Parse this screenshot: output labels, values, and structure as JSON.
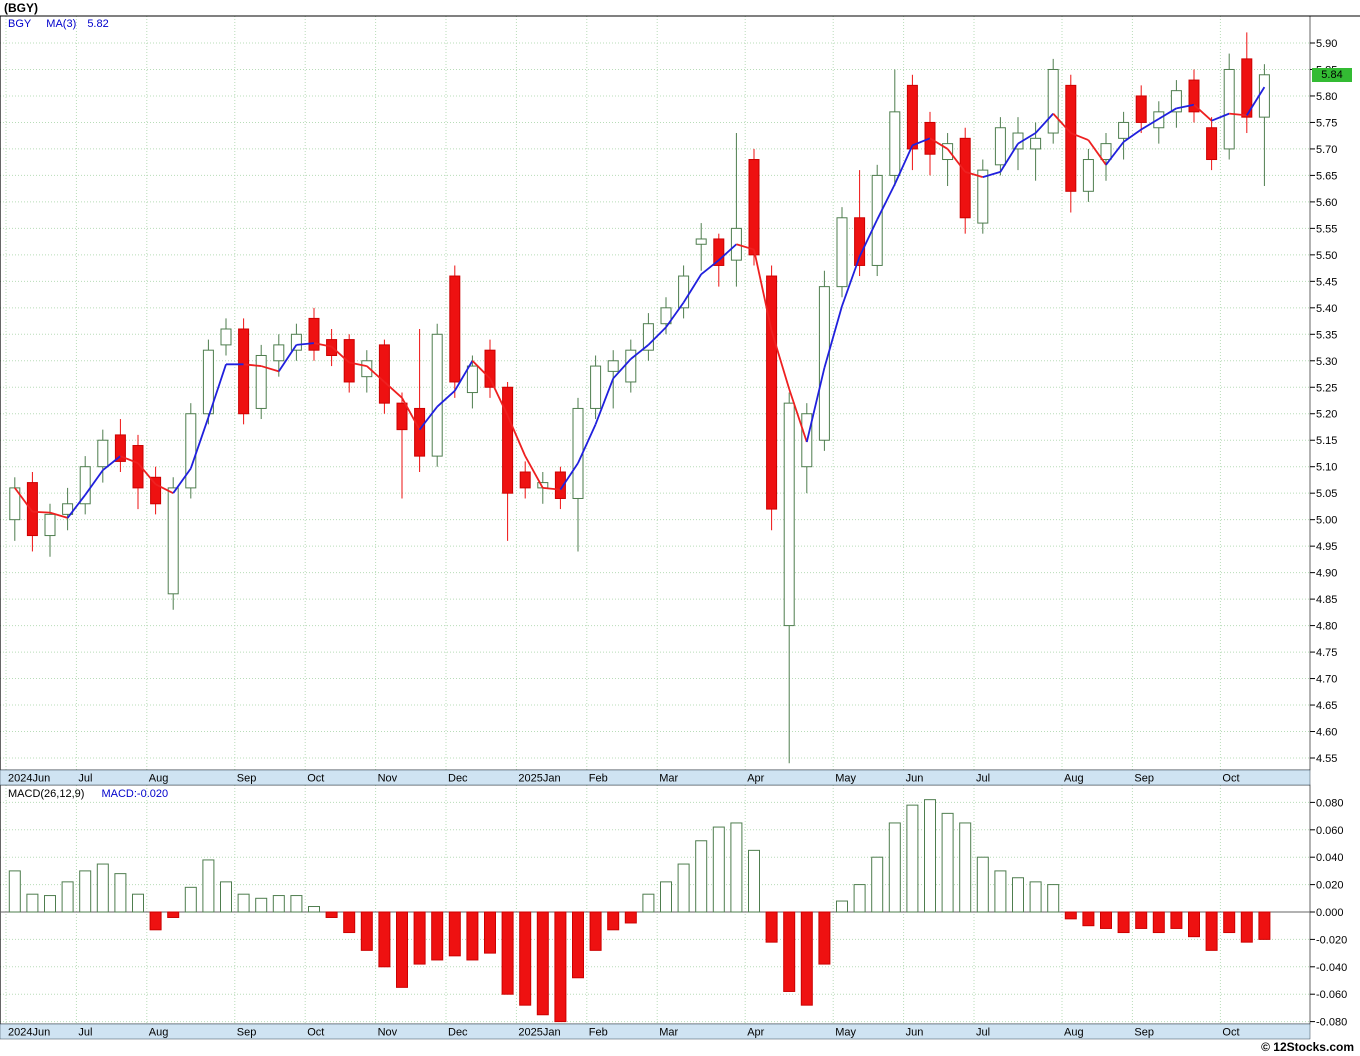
{
  "header": {
    "title": "(BGY)"
  },
  "main_panel": {
    "legend": {
      "symbol": "BGY",
      "ma_label": "MA(3)",
      "ma_value": "5.82"
    },
    "last_price": "5.84"
  },
  "macd_panel": {
    "legend": "MACD(26,12,9)",
    "value": "MACD:-0.020"
  },
  "footer": {
    "copyright": "© 12Stocks.com"
  },
  "colors": {
    "up": "#4e7d4e",
    "down": "#ee1111",
    "downEdge": "#cc0000",
    "maUp": "#2020dd",
    "maDown": "#ee2020",
    "grid": "#b8dcb8",
    "band": "#cfe3f2",
    "badge_bg": "#33bb33",
    "legend_blue": "#0000cc"
  },
  "chart_data": {
    "type": "candlestick_with_macd",
    "symbol": "BGY",
    "title": "(BGY)",
    "legend_position": "top-left",
    "grid": true,
    "main": {
      "ylim": [
        4.53,
        5.95
      ],
      "y_ticks": [
        "5.90",
        "5.85",
        "5.80",
        "5.75",
        "5.70",
        "5.65",
        "5.60",
        "5.55",
        "5.50",
        "5.45",
        "5.40",
        "5.35",
        "5.30",
        "5.25",
        "5.20",
        "5.15",
        "5.10",
        "5.05",
        "5.00",
        "4.95",
        "4.90",
        "4.85",
        "4.80",
        "4.75",
        "4.70",
        "4.65",
        "4.60",
        "4.55"
      ],
      "ma_period": 3,
      "last_ma": 5.82,
      "last_close": 5.84,
      "candles_ohlc": [
        [
          5.0,
          5.08,
          4.96,
          5.06
        ],
        [
          5.07,
          5.09,
          4.94,
          4.97
        ],
        [
          4.97,
          5.03,
          4.93,
          5.01
        ],
        [
          5.01,
          5.06,
          4.98,
          5.03
        ],
        [
          5.03,
          5.12,
          5.01,
          5.1
        ],
        [
          5.1,
          5.17,
          5.07,
          5.15
        ],
        [
          5.16,
          5.19,
          5.09,
          5.11
        ],
        [
          5.14,
          5.16,
          5.02,
          5.06
        ],
        [
          5.08,
          5.1,
          5.01,
          5.03
        ],
        [
          4.86,
          5.08,
          4.83,
          5.06
        ],
        [
          5.06,
          5.22,
          5.04,
          5.2
        ],
        [
          5.2,
          5.34,
          5.18,
          5.32
        ],
        [
          5.33,
          5.38,
          5.31,
          5.36
        ],
        [
          5.36,
          5.38,
          5.18,
          5.2
        ],
        [
          5.21,
          5.33,
          5.19,
          5.31
        ],
        [
          5.3,
          5.35,
          5.27,
          5.33
        ],
        [
          5.32,
          5.37,
          5.3,
          5.35
        ],
        [
          5.38,
          5.4,
          5.3,
          5.32
        ],
        [
          5.34,
          5.36,
          5.29,
          5.31
        ],
        [
          5.34,
          5.35,
          5.24,
          5.26
        ],
        [
          5.27,
          5.32,
          5.24,
          5.3
        ],
        [
          5.33,
          5.34,
          5.2,
          5.22
        ],
        [
          5.22,
          5.24,
          5.04,
          5.17
        ],
        [
          5.21,
          5.36,
          5.09,
          5.12
        ],
        [
          5.12,
          5.37,
          5.1,
          5.35
        ],
        [
          5.46,
          5.48,
          5.23,
          5.26
        ],
        [
          5.24,
          5.31,
          5.21,
          5.29
        ],
        [
          5.32,
          5.34,
          5.23,
          5.25
        ],
        [
          5.25,
          5.26,
          4.96,
          5.05
        ],
        [
          5.09,
          5.11,
          5.04,
          5.06
        ],
        [
          5.06,
          5.09,
          5.03,
          5.07
        ],
        [
          5.09,
          5.1,
          5.02,
          5.04
        ],
        [
          5.04,
          5.23,
          4.94,
          5.21
        ],
        [
          5.21,
          5.31,
          5.19,
          5.29
        ],
        [
          5.28,
          5.32,
          5.21,
          5.3
        ],
        [
          5.26,
          5.34,
          5.24,
          5.32
        ],
        [
          5.32,
          5.39,
          5.3,
          5.37
        ],
        [
          5.37,
          5.42,
          5.35,
          5.4
        ],
        [
          5.4,
          5.48,
          5.38,
          5.46
        ],
        [
          5.52,
          5.56,
          5.47,
          5.53
        ],
        [
          5.53,
          5.54,
          5.44,
          5.48
        ],
        [
          5.49,
          5.73,
          5.44,
          5.55
        ],
        [
          5.68,
          5.7,
          5.48,
          5.5
        ],
        [
          5.46,
          5.48,
          4.98,
          5.02
        ],
        [
          4.8,
          5.24,
          4.54,
          5.22
        ],
        [
          5.1,
          5.22,
          5.05,
          5.2
        ],
        [
          5.15,
          5.47,
          5.13,
          5.44
        ],
        [
          5.44,
          5.59,
          5.42,
          5.57
        ],
        [
          5.57,
          5.66,
          5.46,
          5.48
        ],
        [
          5.48,
          5.67,
          5.46,
          5.65
        ],
        [
          5.65,
          5.85,
          5.63,
          5.77
        ],
        [
          5.82,
          5.84,
          5.66,
          5.7
        ],
        [
          5.75,
          5.77,
          5.65,
          5.69
        ],
        [
          5.68,
          5.73,
          5.63,
          5.71
        ],
        [
          5.72,
          5.74,
          5.54,
          5.57
        ],
        [
          5.56,
          5.68,
          5.54,
          5.66
        ],
        [
          5.67,
          5.76,
          5.65,
          5.74
        ],
        [
          5.7,
          5.76,
          5.66,
          5.73
        ],
        [
          5.7,
          5.75,
          5.64,
          5.72
        ],
        [
          5.73,
          5.87,
          5.71,
          5.85
        ],
        [
          5.82,
          5.84,
          5.58,
          5.62
        ],
        [
          5.62,
          5.7,
          5.6,
          5.68
        ],
        [
          5.68,
          5.73,
          5.64,
          5.71
        ],
        [
          5.72,
          5.77,
          5.68,
          5.75
        ],
        [
          5.8,
          5.82,
          5.73,
          5.75
        ],
        [
          5.74,
          5.79,
          5.71,
          5.77
        ],
        [
          5.77,
          5.83,
          5.74,
          5.81
        ],
        [
          5.83,
          5.85,
          5.75,
          5.77
        ],
        [
          5.74,
          5.76,
          5.66,
          5.68
        ],
        [
          5.7,
          5.88,
          5.68,
          5.85
        ],
        [
          5.87,
          5.92,
          5.73,
          5.76
        ],
        [
          5.76,
          5.86,
          5.63,
          5.84
        ]
      ]
    },
    "macd": {
      "params": "26,12,9",
      "last": -0.02,
      "ylim": [
        -0.09,
        0.09
      ],
      "y_ticks": [
        "0.080",
        "0.060",
        "0.040",
        "0.020",
        "0.000",
        "-0.020",
        "-0.040",
        "-0.060",
        "-0.080"
      ],
      "histogram": [
        0.03,
        0.013,
        0.012,
        0.022,
        0.03,
        0.035,
        0.028,
        0.013,
        -0.013,
        -0.004,
        0.018,
        0.038,
        0.022,
        0.013,
        0.01,
        0.012,
        0.012,
        0.004,
        -0.004,
        -0.015,
        -0.028,
        -0.04,
        -0.055,
        -0.038,
        -0.035,
        -0.032,
        -0.035,
        -0.03,
        -0.06,
        -0.068,
        -0.075,
        -0.08,
        -0.048,
        -0.028,
        -0.013,
        -0.008,
        0.013,
        0.022,
        0.035,
        0.052,
        0.062,
        0.065,
        0.045,
        -0.022,
        -0.058,
        -0.068,
        -0.038,
        0.008,
        0.02,
        0.04,
        0.065,
        0.078,
        0.082,
        0.072,
        0.065,
        0.04,
        0.03,
        0.025,
        0.022,
        0.02,
        -0.005,
        -0.01,
        -0.012,
        -0.015,
        -0.012,
        -0.015,
        -0.012,
        -0.018,
        -0.028,
        -0.015,
        -0.022,
        -0.02
      ]
    },
    "x_months": [
      {
        "label": "2024Jun",
        "i": 0
      },
      {
        "label": "Jul",
        "i": 4
      },
      {
        "label": "Aug",
        "i": 8
      },
      {
        "label": "Sep",
        "i": 13
      },
      {
        "label": "Oct",
        "i": 17
      },
      {
        "label": "Nov",
        "i": 21
      },
      {
        "label": "Dec",
        "i": 25
      },
      {
        "label": "2025Jan",
        "i": 29
      },
      {
        "label": "Feb",
        "i": 33
      },
      {
        "label": "Mar",
        "i": 37
      },
      {
        "label": "Apr",
        "i": 42
      },
      {
        "label": "May",
        "i": 47
      },
      {
        "label": "Jun",
        "i": 51
      },
      {
        "label": "Jul",
        "i": 55
      },
      {
        "label": "Aug",
        "i": 60
      },
      {
        "label": "Sep",
        "i": 64
      },
      {
        "label": "Oct",
        "i": 69
      }
    ]
  }
}
